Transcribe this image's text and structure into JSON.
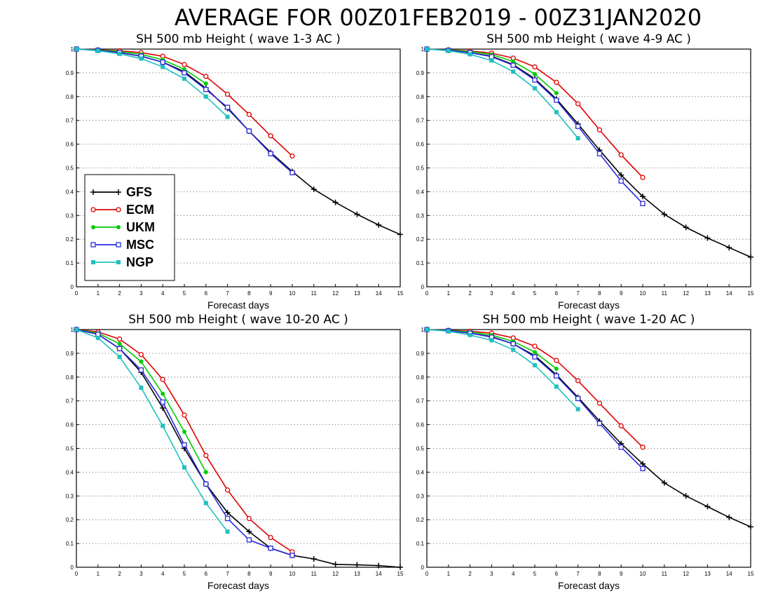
{
  "title": "AVERAGE FOR 00Z01FEB2019 - 00Z31JAN2020",
  "colors": {
    "GFS": "#000000",
    "ECM": "#e00000",
    "UKM": "#00cc00",
    "MSC": "#2a2ae0",
    "NGP": "#20c0c0"
  },
  "legend": [
    "GFS",
    "ECM",
    "UKM",
    "MSC",
    "NGP"
  ],
  "chart_data": [
    {
      "type": "line",
      "title": "SH 500 mb Height ( wave 1-3 AC )",
      "xlabel": "Forecast days",
      "xlim": [
        0,
        15
      ],
      "ylim": [
        0,
        1
      ],
      "xticks": [
        0,
        1,
        2,
        3,
        4,
        5,
        6,
        7,
        8,
        9,
        10,
        11,
        12,
        13,
        14,
        15
      ],
      "yticks": [
        0,
        0.1,
        0.2,
        0.3,
        0.4,
        0.5,
        0.6,
        0.7,
        0.8,
        0.9,
        1
      ],
      "grid": true,
      "legend_position": "bottom-left",
      "series": [
        {
          "name": "GFS",
          "x": [
            0,
            1,
            2,
            3,
            4,
            5,
            6,
            7,
            8,
            9,
            10,
            11,
            12,
            13,
            14,
            15
          ],
          "values": [
            1,
            0.995,
            0.985,
            0.97,
            0.945,
            0.905,
            0.835,
            0.75,
            0.655,
            0.565,
            0.485,
            0.41,
            0.355,
            0.305,
            0.26,
            0.22
          ]
        },
        {
          "name": "ECM",
          "x": [
            0,
            1,
            2,
            3,
            4,
            5,
            6,
            7,
            8,
            9,
            10
          ],
          "values": [
            1,
            0.997,
            0.993,
            0.985,
            0.97,
            0.935,
            0.885,
            0.81,
            0.725,
            0.635,
            0.55
          ]
        },
        {
          "name": "UKM",
          "x": [
            0,
            1,
            2,
            3,
            4,
            5,
            6
          ],
          "values": [
            1,
            0.996,
            0.99,
            0.978,
            0.955,
            0.915,
            0.855
          ]
        },
        {
          "name": "MSC",
          "x": [
            0,
            1,
            2,
            3,
            4,
            5,
            6,
            7,
            8,
            9,
            10
          ],
          "values": [
            1,
            0.995,
            0.986,
            0.97,
            0.945,
            0.9,
            0.83,
            0.755,
            0.655,
            0.56,
            0.48
          ]
        },
        {
          "name": "NGP",
          "x": [
            0,
            1,
            2,
            3,
            4,
            5,
            6,
            7
          ],
          "values": [
            1,
            0.993,
            0.98,
            0.96,
            0.925,
            0.875,
            0.8,
            0.715
          ]
        }
      ]
    },
    {
      "type": "line",
      "title": "SH 500 mb Height ( wave 4-9 AC )",
      "xlabel": "Forecast days",
      "xlim": [
        0,
        15
      ],
      "ylim": [
        0,
        1
      ],
      "xticks": [
        0,
        1,
        2,
        3,
        4,
        5,
        6,
        7,
        8,
        9,
        10,
        11,
        12,
        13,
        14,
        15
      ],
      "yticks": [
        0,
        0.1,
        0.2,
        0.3,
        0.4,
        0.5,
        0.6,
        0.7,
        0.8,
        0.9,
        1
      ],
      "grid": true,
      "series": [
        {
          "name": "GFS",
          "x": [
            0,
            1,
            2,
            3,
            4,
            5,
            6,
            7,
            8,
            9,
            10,
            11,
            12,
            13,
            14,
            15
          ],
          "values": [
            1,
            0.995,
            0.985,
            0.97,
            0.935,
            0.875,
            0.79,
            0.685,
            0.575,
            0.47,
            0.38,
            0.305,
            0.25,
            0.205,
            0.165,
            0.125
          ]
        },
        {
          "name": "ECM",
          "x": [
            0,
            1,
            2,
            3,
            4,
            5,
            6,
            7,
            8,
            9,
            10
          ],
          "values": [
            1,
            0.997,
            0.992,
            0.983,
            0.962,
            0.925,
            0.86,
            0.77,
            0.66,
            0.555,
            0.46
          ]
        },
        {
          "name": "UKM",
          "x": [
            0,
            1,
            2,
            3,
            4,
            5,
            6
          ],
          "values": [
            1,
            0.996,
            0.99,
            0.977,
            0.948,
            0.895,
            0.815
          ]
        },
        {
          "name": "MSC",
          "x": [
            0,
            1,
            2,
            3,
            4,
            5,
            6,
            7,
            8,
            9,
            10
          ],
          "values": [
            1,
            0.995,
            0.985,
            0.968,
            0.932,
            0.87,
            0.785,
            0.675,
            0.56,
            0.445,
            0.35
          ]
        },
        {
          "name": "NGP",
          "x": [
            0,
            1,
            2,
            3,
            4,
            5,
            6,
            7
          ],
          "values": [
            1,
            0.993,
            0.978,
            0.952,
            0.905,
            0.835,
            0.735,
            0.625
          ]
        }
      ]
    },
    {
      "type": "line",
      "title": "SH 500 mb Height ( wave 10-20 AC )",
      "xlabel": "Forecast days",
      "xlim": [
        0,
        15
      ],
      "ylim": [
        0,
        1
      ],
      "xticks": [
        0,
        1,
        2,
        3,
        4,
        5,
        6,
        7,
        8,
        9,
        10,
        11,
        12,
        13,
        14,
        15
      ],
      "yticks": [
        0,
        0.1,
        0.2,
        0.3,
        0.4,
        0.5,
        0.6,
        0.7,
        0.8,
        0.9,
        1
      ],
      "grid": true,
      "series": [
        {
          "name": "GFS",
          "x": [
            0,
            1,
            2,
            3,
            4,
            5,
            6,
            7,
            8,
            9,
            10,
            11,
            12,
            13,
            14,
            15
          ],
          "values": [
            1,
            0.98,
            0.92,
            0.82,
            0.67,
            0.5,
            0.35,
            0.23,
            0.15,
            0.08,
            0.05,
            0.035,
            0.012,
            0.01,
            0.007,
            0.0
          ]
        },
        {
          "name": "ECM",
          "x": [
            0,
            1,
            2,
            3,
            4,
            5,
            6,
            7,
            8,
            9,
            10
          ],
          "values": [
            1,
            0.99,
            0.96,
            0.895,
            0.79,
            0.64,
            0.47,
            0.325,
            0.205,
            0.125,
            0.065
          ]
        },
        {
          "name": "UKM",
          "x": [
            0,
            1,
            2,
            3,
            4,
            5,
            6
          ],
          "values": [
            1,
            0.985,
            0.94,
            0.865,
            0.73,
            0.57,
            0.4
          ]
        },
        {
          "name": "MSC",
          "x": [
            0,
            1,
            2,
            3,
            4,
            5,
            6,
            7,
            8,
            9,
            10
          ],
          "values": [
            1,
            0.98,
            0.92,
            0.83,
            0.695,
            0.515,
            0.35,
            0.205,
            0.115,
            0.08,
            0.05
          ]
        },
        {
          "name": "NGP",
          "x": [
            0,
            1,
            2,
            3,
            4,
            5,
            6,
            7
          ],
          "values": [
            1,
            0.965,
            0.885,
            0.755,
            0.595,
            0.42,
            0.27,
            0.15
          ]
        }
      ]
    },
    {
      "type": "line",
      "title": "SH 500 mb Height ( wave 1-20 AC )",
      "xlabel": "Forecast days",
      "xlim": [
        0,
        15
      ],
      "ylim": [
        0,
        1
      ],
      "xticks": [
        0,
        1,
        2,
        3,
        4,
        5,
        6,
        7,
        8,
        9,
        10,
        11,
        12,
        13,
        14,
        15
      ],
      "yticks": [
        0,
        0.1,
        0.2,
        0.3,
        0.4,
        0.5,
        0.6,
        0.7,
        0.8,
        0.9,
        1
      ],
      "grid": true,
      "series": [
        {
          "name": "GFS",
          "x": [
            0,
            1,
            2,
            3,
            4,
            5,
            6,
            7,
            8,
            9,
            10,
            11,
            12,
            13,
            14,
            15
          ],
          "values": [
            1,
            0.995,
            0.985,
            0.97,
            0.94,
            0.89,
            0.81,
            0.715,
            0.615,
            0.52,
            0.435,
            0.355,
            0.3,
            0.255,
            0.21,
            0.17
          ]
        },
        {
          "name": "ECM",
          "x": [
            0,
            1,
            2,
            3,
            4,
            5,
            6,
            7,
            8,
            9,
            10
          ],
          "values": [
            1,
            0.997,
            0.993,
            0.985,
            0.965,
            0.93,
            0.87,
            0.785,
            0.69,
            0.595,
            0.505
          ]
        },
        {
          "name": "UKM",
          "x": [
            0,
            1,
            2,
            3,
            4,
            5,
            6
          ],
          "values": [
            1,
            0.996,
            0.99,
            0.977,
            0.95,
            0.905,
            0.835
          ]
        },
        {
          "name": "MSC",
          "x": [
            0,
            1,
            2,
            3,
            4,
            5,
            6,
            7,
            8,
            9,
            10
          ],
          "values": [
            1,
            0.995,
            0.985,
            0.968,
            0.94,
            0.885,
            0.805,
            0.71,
            0.605,
            0.505,
            0.415
          ]
        },
        {
          "name": "NGP",
          "x": [
            0,
            1,
            2,
            3,
            4,
            5,
            6,
            7
          ],
          "values": [
            1,
            0.993,
            0.977,
            0.955,
            0.915,
            0.85,
            0.76,
            0.665
          ]
        }
      ]
    }
  ]
}
